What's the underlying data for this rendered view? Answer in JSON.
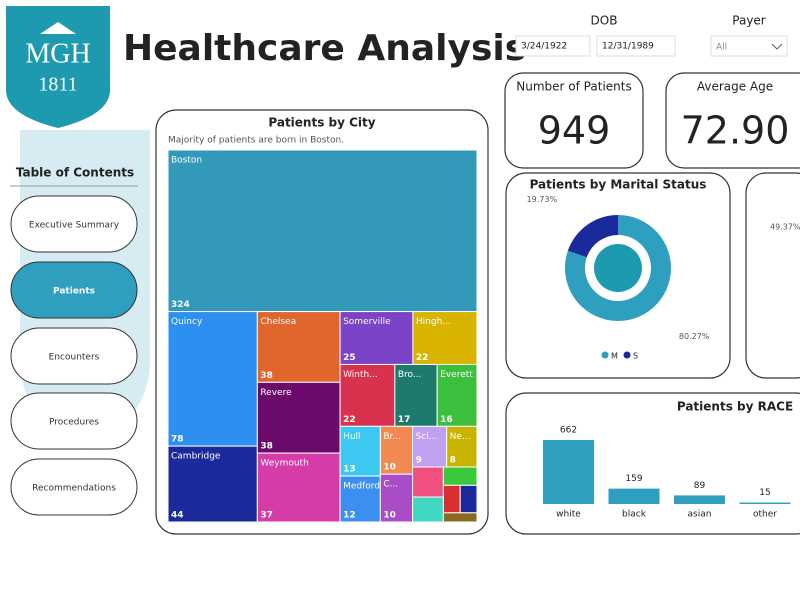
{
  "header": {
    "logo_text": "MGH",
    "logo_year": "1811",
    "title": "Healthcare Analysis"
  },
  "filters": {
    "dob_label": "DOB",
    "dob_start": "3/24/1922",
    "dob_end": "12/31/1989",
    "payer_label": "Payer",
    "payer_value": "All"
  },
  "nav": {
    "title": "Table of Contents",
    "items": [
      "Executive Summary",
      "Patients",
      "Encounters",
      "Procedures",
      "Recommendations"
    ],
    "active": 1
  },
  "cards": [
    {
      "label": "Number of Patients",
      "value": "949"
    },
    {
      "label": "Average Age",
      "value": "72.90"
    }
  ],
  "city_chart": {
    "type": "treemap",
    "title": "Patients by City",
    "subtitle": "Majority of patients are born in Boston.",
    "categories": [
      "Boston",
      "Quincy",
      "Cambridge",
      "Chelsea",
      "Revere",
      "Weymouth",
      "Somerville",
      "Hingh...",
      "Winth...",
      "Bro...",
      "Everett",
      "Hull",
      "Medford",
      "Br...",
      "C...",
      "Sci...",
      "Ne...",
      null,
      null,
      null,
      null,
      null,
      null
    ],
    "values": [
      324,
      78,
      44,
      38,
      38,
      37,
      25,
      22,
      22,
      17,
      16,
      13,
      12,
      10,
      10,
      9,
      8,
      6,
      5,
      4,
      3,
      3,
      2
    ],
    "colors": [
      "#3399bb",
      "#2d8ff0",
      "#1a2a9a",
      "#e0662e",
      "#6b0a6b",
      "#d63ca8",
      "#7b44c8",
      "#d8b400",
      "#d8334e",
      "#1f7a6e",
      "#3cbf3c",
      "#3cc8f0",
      "#3a8ff0",
      "#f08a50",
      "#a84cc8",
      "#c0a0f0",
      "#c8b400",
      "#f05080",
      "#40d8c0",
      "#3cc83c",
      "#d83030",
      "#1a2a9a",
      "#8a6a20"
    ]
  },
  "marital_chart": {
    "type": "donut",
    "title": "Patients by Marital Status",
    "categories": [
      "M",
      "S"
    ],
    "values": [
      80.27,
      19.73
    ],
    "value_labels": [
      "80.27%",
      "19.73%"
    ],
    "colors": [
      "#2f9fc0",
      "#1a2a9a"
    ]
  },
  "cutoff_card": {
    "value_label": "49.37%"
  },
  "race_chart": {
    "type": "bar",
    "title": "Patients by RACE",
    "categories": [
      "white",
      "black",
      "asian",
      "other"
    ],
    "values": [
      662,
      159,
      89,
      15
    ],
    "color": "#2f9fc0"
  }
}
